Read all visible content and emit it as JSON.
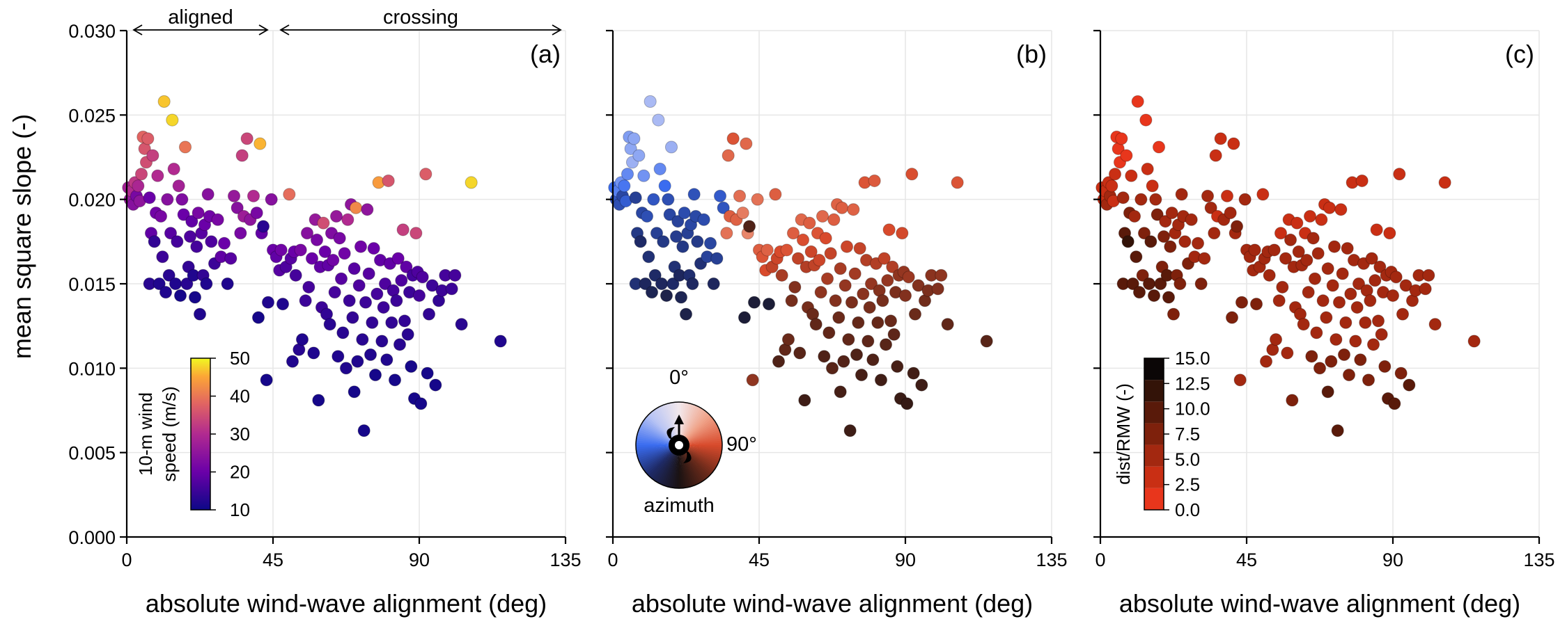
{
  "chart_data": [
    {
      "type": "scatter",
      "panel": "(a)",
      "xlabel": "absolute wind-wave alignment (deg)",
      "ylabel": "mean square slope (-)",
      "xticks": [
        "0",
        "45",
        "90",
        "135"
      ],
      "yticks": [
        "0.000",
        "0.005",
        "0.010",
        "0.015",
        "0.020",
        "0.025",
        "0.030"
      ],
      "xlim": [
        0,
        135
      ],
      "ylim": [
        0,
        0.03
      ],
      "grid": true,
      "color_variable": "10-m wind speed (m/s)",
      "colorbar": {
        "label_line1": "10-m wind",
        "label_line2": "speed (m/s)",
        "range": [
          10,
          50
        ],
        "ticks": [
          "10",
          "20",
          "30",
          "40",
          "50"
        ],
        "colormap": "plasma"
      },
      "annotations": {
        "aligned": "aligned",
        "crossing": "crossing"
      }
    },
    {
      "type": "scatter",
      "panel": "(b)",
      "xlabel": "absolute wind-wave alignment (deg)",
      "xticks": [
        "0",
        "45",
        "90",
        "135"
      ],
      "xlim": [
        0,
        135
      ],
      "ylim": [
        0,
        0.03
      ],
      "grid": true,
      "color_variable": "azimuth",
      "colorwheel": {
        "label_top": "0°",
        "label_right": "90°",
        "label_bottom": "azimuth"
      }
    },
    {
      "type": "scatter",
      "panel": "(c)",
      "xlabel": "absolute wind-wave alignment (deg)",
      "xticks": [
        "0",
        "45",
        "90",
        "135"
      ],
      "xlim": [
        0,
        135
      ],
      "ylim": [
        0,
        0.03
      ],
      "grid": true,
      "color_variable": "dist/RMW (-)",
      "colorbar": {
        "label": "dist/RMW (-)",
        "range": [
          0,
          15
        ],
        "ticks": [
          "0.0",
          "2.5",
          "5.0",
          "7.5",
          "10.0",
          "12.5",
          "15.0"
        ],
        "colormap": "reds-discrete"
      }
    }
  ],
  "points": [
    {
      "x": 0.5,
      "y": 0.0207,
      "ws": 28,
      "az": 270,
      "d": 3
    },
    {
      "x": 1.0,
      "y": 0.02,
      "ws": 26,
      "az": 255,
      "d": 4
    },
    {
      "x": 1.5,
      "y": 0.0205,
      "ws": 30,
      "az": 280,
      "d": 3
    },
    {
      "x": 2.0,
      "y": 0.0197,
      "ws": 24,
      "az": 250,
      "d": 5
    },
    {
      "x": 2.5,
      "y": 0.021,
      "ws": 32,
      "az": 290,
      "d": 3
    },
    {
      "x": 3.0,
      "y": 0.0202,
      "ws": 22,
      "az": 245,
      "d": 6
    },
    {
      "x": 3.5,
      "y": 0.0208,
      "ws": 29,
      "az": 275,
      "d": 3
    },
    {
      "x": 4.0,
      "y": 0.0199,
      "ws": 25,
      "az": 260,
      "d": 4
    },
    {
      "x": 4.5,
      "y": 0.0215,
      "ws": 34,
      "az": 285,
      "d": 3
    },
    {
      "x": 5.0,
      "y": 0.0237,
      "ws": 38,
      "az": 295,
      "d": 2
    },
    {
      "x": 5.5,
      "y": 0.023,
      "ws": 36,
      "az": 300,
      "d": 2
    },
    {
      "x": 6.0,
      "y": 0.0222,
      "ws": 35,
      "az": 305,
      "d": 2
    },
    {
      "x": 6.5,
      "y": 0.0236,
      "ws": 37,
      "az": 300,
      "d": 2
    },
    {
      "x": 7.0,
      "y": 0.0201,
      "ws": 20,
      "az": 240,
      "d": 7
    },
    {
      "x": 7.0,
      "y": 0.015,
      "ws": 13,
      "az": 230,
      "d": 11
    },
    {
      "x": 7.5,
      "y": 0.018,
      "ws": 19,
      "az": 235,
      "d": 12
    },
    {
      "x": 8.0,
      "y": 0.0226,
      "ws": 33,
      "az": 300,
      "d": 2
    },
    {
      "x": 8.5,
      "y": 0.0175,
      "ws": 14,
      "az": 225,
      "d": 13
    },
    {
      "x": 9.0,
      "y": 0.0192,
      "ws": 21,
      "az": 245,
      "d": 8
    },
    {
      "x": 9.5,
      "y": 0.0214,
      "ws": 30,
      "az": 290,
      "d": 3
    },
    {
      "x": 10.0,
      "y": 0.015,
      "ws": 12,
      "az": 220,
      "d": 10
    },
    {
      "x": 10.5,
      "y": 0.019,
      "ws": 22,
      "az": 250,
      "d": 7
    },
    {
      "x": 11.0,
      "y": 0.0166,
      "ws": 15,
      "az": 230,
      "d": 11
    },
    {
      "x": 11.5,
      "y": 0.0258,
      "ws": 47,
      "az": 310,
      "d": 2
    },
    {
      "x": 12.0,
      "y": 0.0145,
      "ws": 12,
      "az": 215,
      "d": 10
    },
    {
      "x": 12.5,
      "y": 0.02,
      "ws": 24,
      "az": 255,
      "d": 6
    },
    {
      "x": 13.0,
      "y": 0.0155,
      "ws": 13,
      "az": 225,
      "d": 9
    },
    {
      "x": 13.5,
      "y": 0.018,
      "ws": 18,
      "az": 240,
      "d": 9
    },
    {
      "x": 14.0,
      "y": 0.0247,
      "ws": 48,
      "az": 310,
      "d": 2
    },
    {
      "x": 14.5,
      "y": 0.0218,
      "ws": 30,
      "az": 285,
      "d": 4
    },
    {
      "x": 15.0,
      "y": 0.015,
      "ws": 12,
      "az": 220,
      "d": 10
    },
    {
      "x": 15.5,
      "y": 0.0175,
      "ws": 16,
      "az": 235,
      "d": 10
    },
    {
      "x": 16.0,
      "y": 0.0208,
      "ws": 28,
      "az": 270,
      "d": 4
    },
    {
      "x": 16.5,
      "y": 0.0143,
      "ws": 11,
      "az": 210,
      "d": 11
    },
    {
      "x": 17.0,
      "y": 0.02,
      "ws": 23,
      "az": 250,
      "d": 6
    },
    {
      "x": 17.5,
      "y": 0.0191,
      "ws": 20,
      "az": 245,
      "d": 8
    },
    {
      "x": 18.0,
      "y": 0.0231,
      "ws": 40,
      "az": 305,
      "d": 2
    },
    {
      "x": 18.5,
      "y": 0.015,
      "ws": 13,
      "az": 225,
      "d": 10
    },
    {
      "x": 19.0,
      "y": 0.016,
      "ws": 14,
      "az": 230,
      "d": 9
    },
    {
      "x": 19.5,
      "y": 0.0178,
      "ws": 17,
      "az": 238,
      "d": 9
    },
    {
      "x": 20.0,
      "y": 0.0187,
      "ws": 19,
      "az": 242,
      "d": 7
    },
    {
      "x": 20.5,
      "y": 0.0155,
      "ws": 12,
      "az": 220,
      "d": 10
    },
    {
      "x": 21.0,
      "y": 0.0142,
      "ws": 11,
      "az": 215,
      "d": 12
    },
    {
      "x": 21.5,
      "y": 0.0172,
      "ws": 16,
      "az": 235,
      "d": 8
    },
    {
      "x": 22.0,
      "y": 0.0192,
      "ws": 22,
      "az": 248,
      "d": 6
    },
    {
      "x": 22.5,
      "y": 0.0132,
      "ws": 12,
      "az": 210,
      "d": 8
    },
    {
      "x": 23.0,
      "y": 0.018,
      "ws": 18,
      "az": 240,
      "d": 7
    },
    {
      "x": 23.5,
      "y": 0.0155,
      "ws": 14,
      "az": 228,
      "d": 9
    },
    {
      "x": 24.0,
      "y": 0.0185,
      "ws": 20,
      "az": 245,
      "d": 6
    },
    {
      "x": 24.5,
      "y": 0.015,
      "ws": 12,
      "az": 222,
      "d": 8
    },
    {
      "x": 25.0,
      "y": 0.0203,
      "ws": 24,
      "az": 252,
      "d": 5
    },
    {
      "x": 25.5,
      "y": 0.019,
      "ws": 21,
      "az": 246,
      "d": 6
    },
    {
      "x": 26.0,
      "y": 0.0175,
      "ws": 17,
      "az": 236,
      "d": 7
    },
    {
      "x": 27.0,
      "y": 0.0162,
      "ws": 15,
      "az": 230,
      "d": 8
    },
    {
      "x": 28.0,
      "y": 0.0188,
      "ws": 22,
      "az": 248,
      "d": 6
    },
    {
      "x": 29.0,
      "y": 0.0166,
      "ws": 19,
      "az": 242,
      "d": 7
    },
    {
      "x": 30.0,
      "y": 0.0174,
      "ws": 20,
      "az": 244,
      "d": 6
    },
    {
      "x": 31.0,
      "y": 0.015,
      "ws": 12,
      "az": 220,
      "d": 9
    },
    {
      "x": 32.0,
      "y": 0.0165,
      "ws": 18,
      "az": 240,
      "d": 6
    },
    {
      "x": 33.0,
      "y": 0.0202,
      "ws": 26,
      "az": 258,
      "d": 5
    },
    {
      "x": 34.0,
      "y": 0.0195,
      "ws": 24,
      "az": 254,
      "d": 5
    },
    {
      "x": 35.0,
      "y": 0.018,
      "ws": 22,
      "az": 70,
      "d": 6
    },
    {
      "x": 35.5,
      "y": 0.0226,
      "ws": 33,
      "az": 75,
      "d": 3
    },
    {
      "x": 36.0,
      "y": 0.019,
      "ws": 27,
      "az": 80,
      "d": 4
    },
    {
      "x": 37.0,
      "y": 0.0236,
      "ws": 34,
      "az": 85,
      "d": 3
    },
    {
      "x": 38.0,
      "y": 0.0188,
      "ws": 25,
      "az": 78,
      "d": 5
    },
    {
      "x": 39.0,
      "y": 0.0202,
      "ws": 30,
      "az": 72,
      "d": 4
    },
    {
      "x": 40.0,
      "y": 0.0192,
      "ws": 22,
      "az": 65,
      "d": 6
    },
    {
      "x": 40.5,
      "y": 0.013,
      "ws": 11,
      "az": 200,
      "d": 8
    },
    {
      "x": 41.0,
      "y": 0.0233,
      "ws": 46,
      "az": 75,
      "d": 3
    },
    {
      "x": 41.5,
      "y": 0.018,
      "ws": 19,
      "az": 60,
      "d": 6
    },
    {
      "x": 42.0,
      "y": 0.0184,
      "ws": 13,
      "az": 150,
      "d": 8
    },
    {
      "x": 43.0,
      "y": 0.0093,
      "ws": 11,
      "az": 120,
      "d": 7
    },
    {
      "x": 43.5,
      "y": 0.0139,
      "ws": 12,
      "az": 200,
      "d": 8
    },
    {
      "x": 44.5,
      "y": 0.02,
      "ws": 24,
      "az": 70,
      "d": 5
    },
    {
      "x": 45.0,
      "y": 0.017,
      "ws": 20,
      "az": 80,
      "d": 5
    },
    {
      "x": 46.0,
      "y": 0.0166,
      "ws": 19,
      "az": 85,
      "d": 5
    },
    {
      "x": 47.0,
      "y": 0.0158,
      "ws": 18,
      "az": 90,
      "d": 6
    },
    {
      "x": 47.5,
      "y": 0.017,
      "ws": 21,
      "az": 78,
      "d": 5
    },
    {
      "x": 48.0,
      "y": 0.0138,
      "ws": 12,
      "az": 200,
      "d": 8
    },
    {
      "x": 49.0,
      "y": 0.016,
      "ws": 17,
      "az": 100,
      "d": 6
    },
    {
      "x": 50.0,
      "y": 0.0203,
      "ws": 39,
      "az": 80,
      "d": 3
    },
    {
      "x": 50.5,
      "y": 0.0165,
      "ws": 18,
      "az": 95,
      "d": 6
    },
    {
      "x": 51.0,
      "y": 0.0104,
      "ws": 12,
      "az": 150,
      "d": 7
    },
    {
      "x": 51.5,
      "y": 0.0169,
      "ws": 20,
      "az": 90,
      "d": 5
    },
    {
      "x": 52.0,
      "y": 0.0155,
      "ws": 16,
      "az": 110,
      "d": 6
    },
    {
      "x": 53.0,
      "y": 0.0111,
      "ws": 13,
      "az": 140,
      "d": 7
    },
    {
      "x": 53.5,
      "y": 0.017,
      "ws": 22,
      "az": 85,
      "d": 5
    },
    {
      "x": 54.0,
      "y": 0.0117,
      "ws": 12,
      "az": 135,
      "d": 7
    },
    {
      "x": 55.0,
      "y": 0.014,
      "ws": 15,
      "az": 130,
      "d": 6
    },
    {
      "x": 55.5,
      "y": 0.018,
      "ws": 24,
      "az": 80,
      "d": 4
    },
    {
      "x": 56.0,
      "y": 0.0148,
      "ws": 16,
      "az": 125,
      "d": 6
    },
    {
      "x": 57.0,
      "y": 0.0165,
      "ws": 20,
      "az": 100,
      "d": 5
    },
    {
      "x": 57.5,
      "y": 0.0109,
      "ws": 12,
      "az": 145,
      "d": 7
    },
    {
      "x": 58.0,
      "y": 0.0188,
      "ws": 26,
      "az": 75,
      "d": 4
    },
    {
      "x": 58.5,
      "y": 0.0176,
      "ws": 22,
      "az": 88,
      "d": 5
    },
    {
      "x": 59.0,
      "y": 0.0081,
      "ws": 11,
      "az": 160,
      "d": 9
    },
    {
      "x": 59.5,
      "y": 0.016,
      "ws": 19,
      "az": 105,
      "d": 5
    },
    {
      "x": 60.0,
      "y": 0.0136,
      "ws": 15,
      "az": 130,
      "d": 6
    },
    {
      "x": 60.5,
      "y": 0.0186,
      "ws": 35,
      "az": 80,
      "d": 3
    },
    {
      "x": 61.0,
      "y": 0.0169,
      "ws": 20,
      "az": 95,
      "d": 5
    },
    {
      "x": 61.5,
      "y": 0.0132,
      "ws": 14,
      "az": 135,
      "d": 6
    },
    {
      "x": 62.0,
      "y": 0.0161,
      "ws": 19,
      "az": 100,
      "d": 5
    },
    {
      "x": 62.5,
      "y": 0.0126,
      "ws": 13,
      "az": 140,
      "d": 6
    },
    {
      "x": 63.0,
      "y": 0.018,
      "ws": 23,
      "az": 85,
      "d": 4
    },
    {
      "x": 63.5,
      "y": 0.0164,
      "ws": 21,
      "az": 95,
      "d": 5
    },
    {
      "x": 64.0,
      "y": 0.0145,
      "ws": 16,
      "az": 120,
      "d": 6
    },
    {
      "x": 64.5,
      "y": 0.019,
      "ws": 26,
      "az": 75,
      "d": 4
    },
    {
      "x": 65.0,
      "y": 0.0107,
      "ws": 12,
      "az": 150,
      "d": 8
    },
    {
      "x": 65.5,
      "y": 0.0177,
      "ws": 22,
      "az": 90,
      "d": 5
    },
    {
      "x": 66.0,
      "y": 0.0153,
      "ws": 18,
      "az": 110,
      "d": 6
    },
    {
      "x": 66.5,
      "y": 0.0121,
      "ws": 13,
      "az": 140,
      "d": 7
    },
    {
      "x": 67.0,
      "y": 0.0168,
      "ws": 21,
      "az": 98,
      "d": 5
    },
    {
      "x": 67.5,
      "y": 0.01,
      "ws": 12,
      "az": 145,
      "d": 8
    },
    {
      "x": 68.0,
      "y": 0.0188,
      "ws": 30,
      "az": 80,
      "d": 4
    },
    {
      "x": 68.5,
      "y": 0.014,
      "ws": 15,
      "az": 125,
      "d": 6
    },
    {
      "x": 69.0,
      "y": 0.0197,
      "ws": 25,
      "az": 78,
      "d": 4
    },
    {
      "x": 69.5,
      "y": 0.013,
      "ws": 14,
      "az": 135,
      "d": 6
    },
    {
      "x": 70.0,
      "y": 0.0159,
      "ws": 18,
      "az": 110,
      "d": 6
    },
    {
      "x": 70.0,
      "y": 0.0086,
      "ws": 11,
      "az": 155,
      "d": 10
    },
    {
      "x": 70.5,
      "y": 0.0195,
      "ws": 42,
      "az": 80,
      "d": 3
    },
    {
      "x": 71.0,
      "y": 0.0104,
      "ws": 12,
      "az": 148,
      "d": 8
    },
    {
      "x": 71.5,
      "y": 0.0149,
      "ws": 17,
      "az": 118,
      "d": 6
    },
    {
      "x": 72.0,
      "y": 0.0172,
      "ws": 21,
      "az": 95,
      "d": 5
    },
    {
      "x": 72.5,
      "y": 0.0117,
      "ws": 13,
      "az": 140,
      "d": 7
    },
    {
      "x": 73.0,
      "y": 0.0063,
      "ws": 11,
      "az": 160,
      "d": 11
    },
    {
      "x": 73.5,
      "y": 0.0139,
      "ws": 15,
      "az": 128,
      "d": 6
    },
    {
      "x": 74.0,
      "y": 0.0194,
      "ws": 25,
      "az": 78,
      "d": 4
    },
    {
      "x": 74.5,
      "y": 0.0156,
      "ws": 18,
      "az": 112,
      "d": 6
    },
    {
      "x": 75.0,
      "y": 0.0108,
      "ws": 12,
      "az": 150,
      "d": 8
    },
    {
      "x": 75.5,
      "y": 0.0127,
      "ws": 14,
      "az": 138,
      "d": 7
    },
    {
      "x": 76.0,
      "y": 0.0171,
      "ws": 20,
      "az": 98,
      "d": 5
    },
    {
      "x": 76.5,
      "y": 0.0096,
      "ws": 11,
      "az": 155,
      "d": 9
    },
    {
      "x": 77.0,
      "y": 0.0144,
      "ws": 16,
      "az": 122,
      "d": 6
    },
    {
      "x": 77.5,
      "y": 0.021,
      "ws": 44,
      "az": 85,
      "d": 3
    },
    {
      "x": 78.0,
      "y": 0.0164,
      "ws": 19,
      "az": 105,
      "d": 5
    },
    {
      "x": 78.5,
      "y": 0.0116,
      "ws": 13,
      "az": 142,
      "d": 7
    },
    {
      "x": 79.0,
      "y": 0.0136,
      "ws": 15,
      "az": 130,
      "d": 6
    },
    {
      "x": 79.5,
      "y": 0.015,
      "ws": 17,
      "az": 118,
      "d": 6
    },
    {
      "x": 80.0,
      "y": 0.0105,
      "ws": 12,
      "az": 150,
      "d": 8
    },
    {
      "x": 80.5,
      "y": 0.0211,
      "ws": 36,
      "az": 82,
      "d": 3
    },
    {
      "x": 81.0,
      "y": 0.0162,
      "ws": 19,
      "az": 106,
      "d": 5
    },
    {
      "x": 81.5,
      "y": 0.0127,
      "ws": 14,
      "az": 138,
      "d": 7
    },
    {
      "x": 82.0,
      "y": 0.0146,
      "ws": 16,
      "az": 124,
      "d": 6
    },
    {
      "x": 82.5,
      "y": 0.0093,
      "ws": 11,
      "az": 158,
      "d": 9
    },
    {
      "x": 83.0,
      "y": 0.014,
      "ws": 15,
      "az": 130,
      "d": 6
    },
    {
      "x": 83.5,
      "y": 0.0165,
      "ws": 20,
      "az": 100,
      "d": 5
    },
    {
      "x": 84.0,
      "y": 0.0114,
      "ws": 13,
      "az": 145,
      "d": 7
    },
    {
      "x": 84.5,
      "y": 0.0152,
      "ws": 17,
      "az": 118,
      "d": 6
    },
    {
      "x": 85.0,
      "y": 0.0182,
      "ws": 33,
      "az": 90,
      "d": 4
    },
    {
      "x": 85.5,
      "y": 0.0128,
      "ws": 14,
      "az": 136,
      "d": 7
    },
    {
      "x": 86.0,
      "y": 0.016,
      "ws": 19,
      "az": 106,
      "d": 5
    },
    {
      "x": 86.5,
      "y": 0.012,
      "ws": 13,
      "az": 142,
      "d": 7
    },
    {
      "x": 87.0,
      "y": 0.0145,
      "ws": 15,
      "az": 128,
      "d": 6
    },
    {
      "x": 87.5,
      "y": 0.0101,
      "ws": 11,
      "az": 155,
      "d": 8
    },
    {
      "x": 88.0,
      "y": 0.0155,
      "ws": 16,
      "az": 120,
      "d": 6
    },
    {
      "x": 88.5,
      "y": 0.0082,
      "ws": 11,
      "az": 162,
      "d": 10
    },
    {
      "x": 89.0,
      "y": 0.018,
      "ws": 34,
      "az": 92,
      "d": 4
    },
    {
      "x": 89.5,
      "y": 0.0157,
      "ws": 17,
      "az": 118,
      "d": 6
    },
    {
      "x": 90.0,
      "y": 0.0143,
      "ws": 16,
      "az": 125,
      "d": 6
    },
    {
      "x": 90.5,
      "y": 0.0079,
      "ws": 11,
      "az": 165,
      "d": 11
    },
    {
      "x": 91.0,
      "y": 0.0154,
      "ws": 17,
      "az": 115,
      "d": 6
    },
    {
      "x": 92.0,
      "y": 0.0215,
      "ws": 37,
      "az": 88,
      "d": 3
    },
    {
      "x": 92.5,
      "y": 0.0097,
      "ws": 11,
      "az": 158,
      "d": 9
    },
    {
      "x": 93.0,
      "y": 0.0132,
      "ws": 14,
      "az": 135,
      "d": 7
    },
    {
      "x": 94.0,
      "y": 0.0149,
      "ws": 15,
      "az": 125,
      "d": 6
    },
    {
      "x": 95.0,
      "y": 0.009,
      "ws": 11,
      "az": 160,
      "d": 10
    },
    {
      "x": 96.0,
      "y": 0.014,
      "ws": 14,
      "az": 132,
      "d": 7
    },
    {
      "x": 97.0,
      "y": 0.0146,
      "ws": 15,
      "az": 128,
      "d": 6
    },
    {
      "x": 98.0,
      "y": 0.0155,
      "ws": 16,
      "az": 122,
      "d": 6
    },
    {
      "x": 100.0,
      "y": 0.0147,
      "ws": 15,
      "az": 126,
      "d": 6
    },
    {
      "x": 101.0,
      "y": 0.0155,
      "ws": 16,
      "az": 120,
      "d": 6
    },
    {
      "x": 103.0,
      "y": 0.0126,
      "ws": 13,
      "az": 140,
      "d": 7
    },
    {
      "x": 106.0,
      "y": 0.021,
      "ws": 48,
      "az": 85,
      "d": 3
    },
    {
      "x": 115.0,
      "y": 0.0116,
      "ws": 12,
      "az": 145,
      "d": 7
    }
  ]
}
